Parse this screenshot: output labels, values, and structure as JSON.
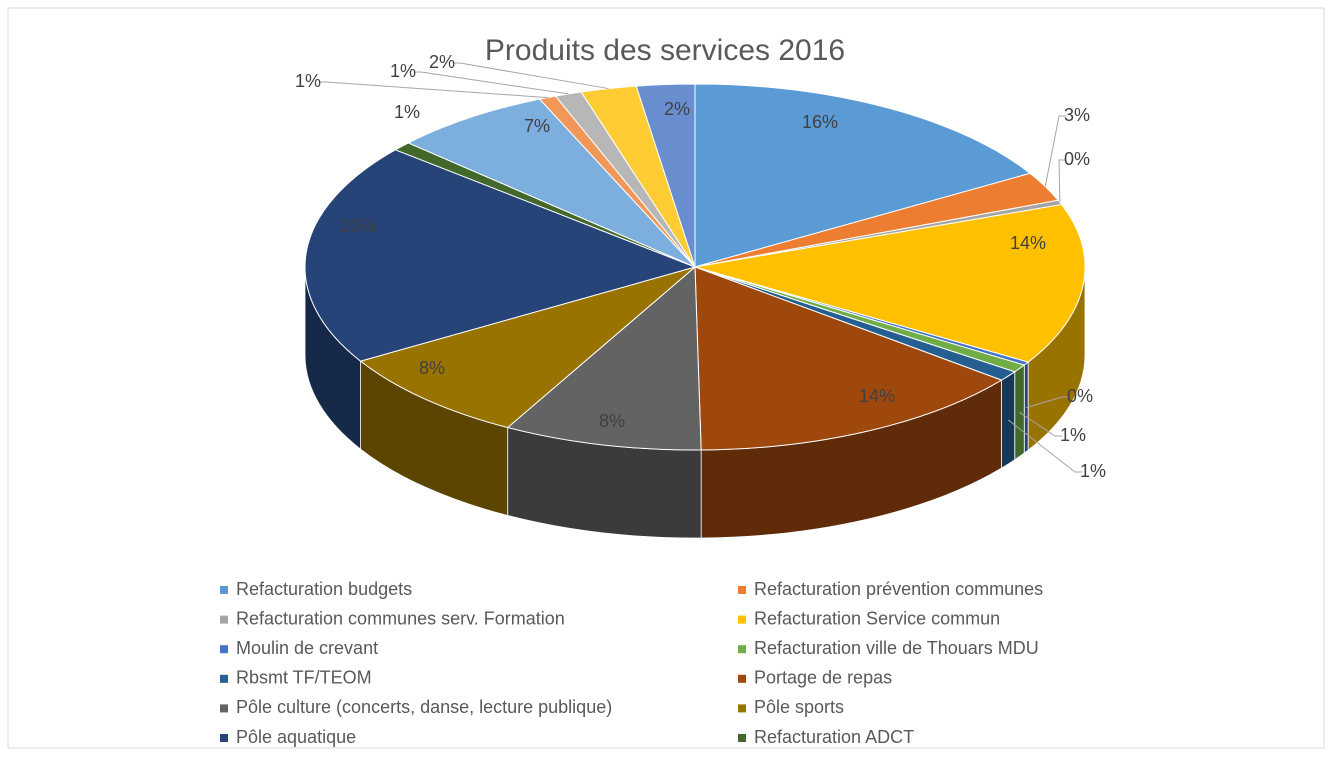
{
  "chart_data": {
    "type": "pie",
    "title": "Produits des services 2016",
    "categories": [
      "Refacturation budgets",
      "Refacturation prévention communes",
      "Refacturation communes serv. Formation",
      "Refacturation Service commun",
      "Moulin de crevant",
      "Refacturation ville de Thouars MDU",
      "Rbsmt TF/TEOM",
      "Portage de repas",
      "Pôle culture (concerts, danse, lecture publique)",
      "Pôle sports",
      "Pôle aquatique",
      "Refacturation ADCT",
      null,
      null,
      null,
      null,
      null
    ],
    "values": [
      16.4,
      2.6,
      0.4,
      14.2,
      0.3,
      0.7,
      0.9,
      14.1,
      8.2,
      8.4,
      19.6,
      0.8,
      6.6,
      0.7,
      1.1,
      2.3,
      2.4
    ],
    "value_labels": [
      "16%",
      "3%",
      "0%",
      "14%",
      "0%",
      "1%",
      "1%",
      "14%",
      "8%",
      "8%",
      "20%",
      "1%",
      "7%",
      "1%",
      "1%",
      "2%",
      "2%"
    ],
    "colors": [
      "#5B9BD5",
      "#ED7D31",
      "#A5A5A5",
      "#FFC000",
      "#4472C4",
      "#70AD47",
      "#255E91",
      "#9E480E",
      "#636363",
      "#997300",
      "#264478",
      "#43682B",
      "#7CAFDD",
      "#F1975A",
      "#B7B7B7",
      "#FFCD33",
      "#698ED0"
    ],
    "legend": "bottom"
  }
}
